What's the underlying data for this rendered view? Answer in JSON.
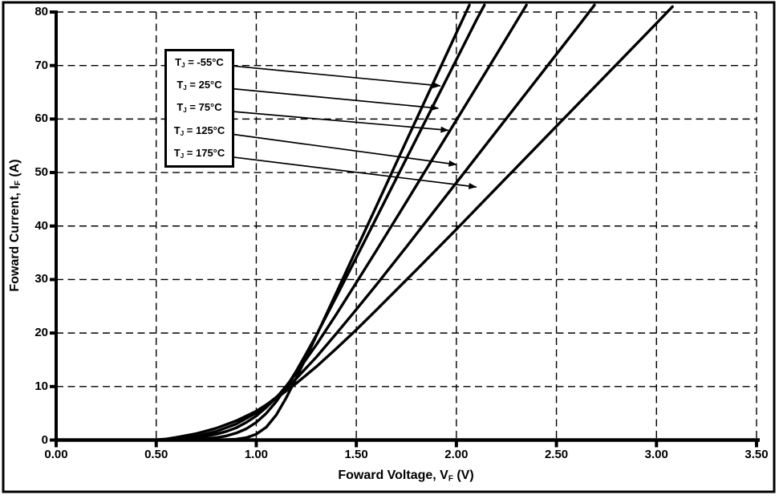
{
  "figure": {
    "background": "#ffffff",
    "border_color": "#000000",
    "ink_color": "#000000"
  },
  "chart_data": {
    "type": "line",
    "title": "",
    "xlabel": "Foward Voltage, VF (V)",
    "xlabel_main": "Foward Voltage, V",
    "xlabel_sub": "F",
    "xlabel_unit": " (V)",
    "ylabel": "Foward Current, IF (A)",
    "ylabel_main": "Foward Current, I",
    "ylabel_sub": "F",
    "ylabel_unit": " (A)",
    "xlim": [
      0,
      3.5
    ],
    "ylim": [
      0,
      80
    ],
    "x_ticks": [
      "0.00",
      "0.50",
      "1.00",
      "1.50",
      "2.00",
      "2.50",
      "3.00",
      "3.50"
    ],
    "x_tick_values": [
      0,
      0.5,
      1.0,
      1.5,
      2.0,
      2.5,
      3.0,
      3.5
    ],
    "y_ticks": [
      "0",
      "10",
      "20",
      "30",
      "40",
      "50",
      "60",
      "70",
      "80"
    ],
    "y_tick_values": [
      0,
      10,
      20,
      30,
      40,
      50,
      60,
      70,
      80
    ],
    "grid": "dashed",
    "legend_position": "inside-top-left",
    "line_color": "#000000",
    "series": [
      {
        "name": "TJ = -55°C",
        "temperature_c": -55,
        "legend": {
          "pre": "T",
          "sub": "J",
          "rest": " = -55°C"
        },
        "points": [
          [
            0,
            0
          ],
          [
            0.6,
            0
          ],
          [
            0.8,
            0.02
          ],
          [
            0.85,
            0.06
          ],
          [
            0.9,
            0.16
          ],
          [
            0.95,
            0.43
          ],
          [
            1.0,
            1.1
          ],
          [
            1.05,
            2.4
          ],
          [
            1.1,
            4.7
          ],
          [
            1.15,
            7.9
          ],
          [
            1.2,
            11.6
          ],
          [
            1.25,
            15.5
          ],
          [
            1.3,
            19.5
          ],
          [
            1.4,
            27.5
          ],
          [
            1.5,
            35.6
          ],
          [
            1.6,
            43.7
          ],
          [
            1.75,
            55.9
          ],
          [
            1.9,
            68.0
          ],
          [
            2.0,
            76.1
          ],
          [
            2.065,
            81.3
          ]
        ],
        "callout_target": [
          1.92,
          66.2
        ]
      },
      {
        "name": "TJ = 25°C",
        "temperature_c": 25,
        "legend": {
          "pre": "T",
          "sub": "J",
          "rest": " = 25°C"
        },
        "points": [
          [
            0,
            0
          ],
          [
            0.6,
            0
          ],
          [
            0.7,
            0.1
          ],
          [
            0.75,
            0.26
          ],
          [
            0.8,
            0.45
          ],
          [
            0.85,
            0.76
          ],
          [
            0.9,
            1.3
          ],
          [
            0.95,
            2.1
          ],
          [
            1.0,
            3.3
          ],
          [
            1.05,
            5.0
          ],
          [
            1.1,
            7.2
          ],
          [
            1.15,
            9.9
          ],
          [
            1.2,
            12.9
          ],
          [
            1.25,
            16.2
          ],
          [
            1.3,
            19.6
          ],
          [
            1.4,
            26.8
          ],
          [
            1.5,
            34.1
          ],
          [
            1.6,
            41.5
          ],
          [
            1.75,
            52.6
          ],
          [
            1.9,
            63.7
          ],
          [
            2.0,
            71.1
          ],
          [
            2.1,
            78.5
          ],
          [
            2.14,
            81.3
          ]
        ],
        "callout_target": [
          1.91,
          62.0
        ]
      },
      {
        "name": "TJ = 75°C",
        "temperature_c": 75,
        "legend": {
          "pre": "T",
          "sub": "J",
          "rest": " = 75°C"
        },
        "points": [
          [
            0,
            0
          ],
          [
            0.55,
            0
          ],
          [
            0.65,
            0.25
          ],
          [
            0.7,
            0.5
          ],
          [
            0.75,
            0.73
          ],
          [
            0.8,
            1.1
          ],
          [
            0.85,
            1.6
          ],
          [
            0.9,
            2.3
          ],
          [
            0.95,
            3.3
          ],
          [
            1.0,
            4.5
          ],
          [
            1.05,
            6.1
          ],
          [
            1.1,
            7.9
          ],
          [
            1.15,
            10.1
          ],
          [
            1.2,
            12.5
          ],
          [
            1.3,
            17.8
          ],
          [
            1.4,
            23.5
          ],
          [
            1.5,
            29.4
          ],
          [
            1.6,
            35.4
          ],
          [
            1.75,
            44.5
          ],
          [
            1.9,
            53.7
          ],
          [
            2.0,
            59.8
          ],
          [
            2.2,
            72.0
          ],
          [
            2.35,
            81.3
          ]
        ],
        "callout_target": [
          1.96,
          57.9
        ]
      },
      {
        "name": "TJ = 125°C",
        "temperature_c": 125,
        "legend": {
          "pre": "T",
          "sub": "J",
          "rest": " = 125°C"
        },
        "points": [
          [
            0,
            0
          ],
          [
            0.5,
            0
          ],
          [
            0.55,
            0.1
          ],
          [
            0.6,
            0.25
          ],
          [
            0.7,
            0.7
          ],
          [
            0.8,
            1.6
          ],
          [
            0.9,
            3.0
          ],
          [
            1.0,
            5.1
          ],
          [
            1.1,
            8.0
          ],
          [
            1.2,
            11.5
          ],
          [
            1.3,
            15.5
          ],
          [
            1.4,
            19.9
          ],
          [
            1.5,
            24.4
          ],
          [
            1.6,
            29.0
          ],
          [
            1.75,
            36.1
          ],
          [
            1.9,
            43.3
          ],
          [
            2.0,
            48.1
          ],
          [
            2.2,
            57.7
          ],
          [
            2.4,
            67.3
          ],
          [
            2.6,
            76.9
          ],
          [
            2.69,
            81.3
          ]
        ],
        "callout_target": [
          2.0,
          51.5
        ]
      },
      {
        "name": "TJ = 175°C",
        "temperature_c": 175,
        "legend": {
          "pre": "T",
          "sub": "J",
          "rest": " = 175°C"
        },
        "points": [
          [
            0,
            0
          ],
          [
            0.45,
            0
          ],
          [
            0.5,
            0.05
          ],
          [
            0.55,
            0.2
          ],
          [
            0.6,
            0.5
          ],
          [
            0.7,
            1.2
          ],
          [
            0.8,
            2.2
          ],
          [
            0.9,
            3.6
          ],
          [
            1.0,
            5.4
          ],
          [
            1.1,
            7.8
          ],
          [
            1.2,
            10.6
          ],
          [
            1.3,
            13.7
          ],
          [
            1.4,
            17.1
          ],
          [
            1.5,
            20.6
          ],
          [
            1.6,
            24.3
          ],
          [
            1.8,
            31.8
          ],
          [
            2.0,
            39.4
          ],
          [
            2.2,
            47.1
          ],
          [
            2.4,
            54.8
          ],
          [
            2.6,
            62.5
          ],
          [
            2.8,
            70.2
          ],
          [
            3.0,
            77.9
          ],
          [
            3.08,
            81.0
          ]
        ],
        "callout_target": [
          2.1,
          47.3
        ]
      }
    ]
  }
}
